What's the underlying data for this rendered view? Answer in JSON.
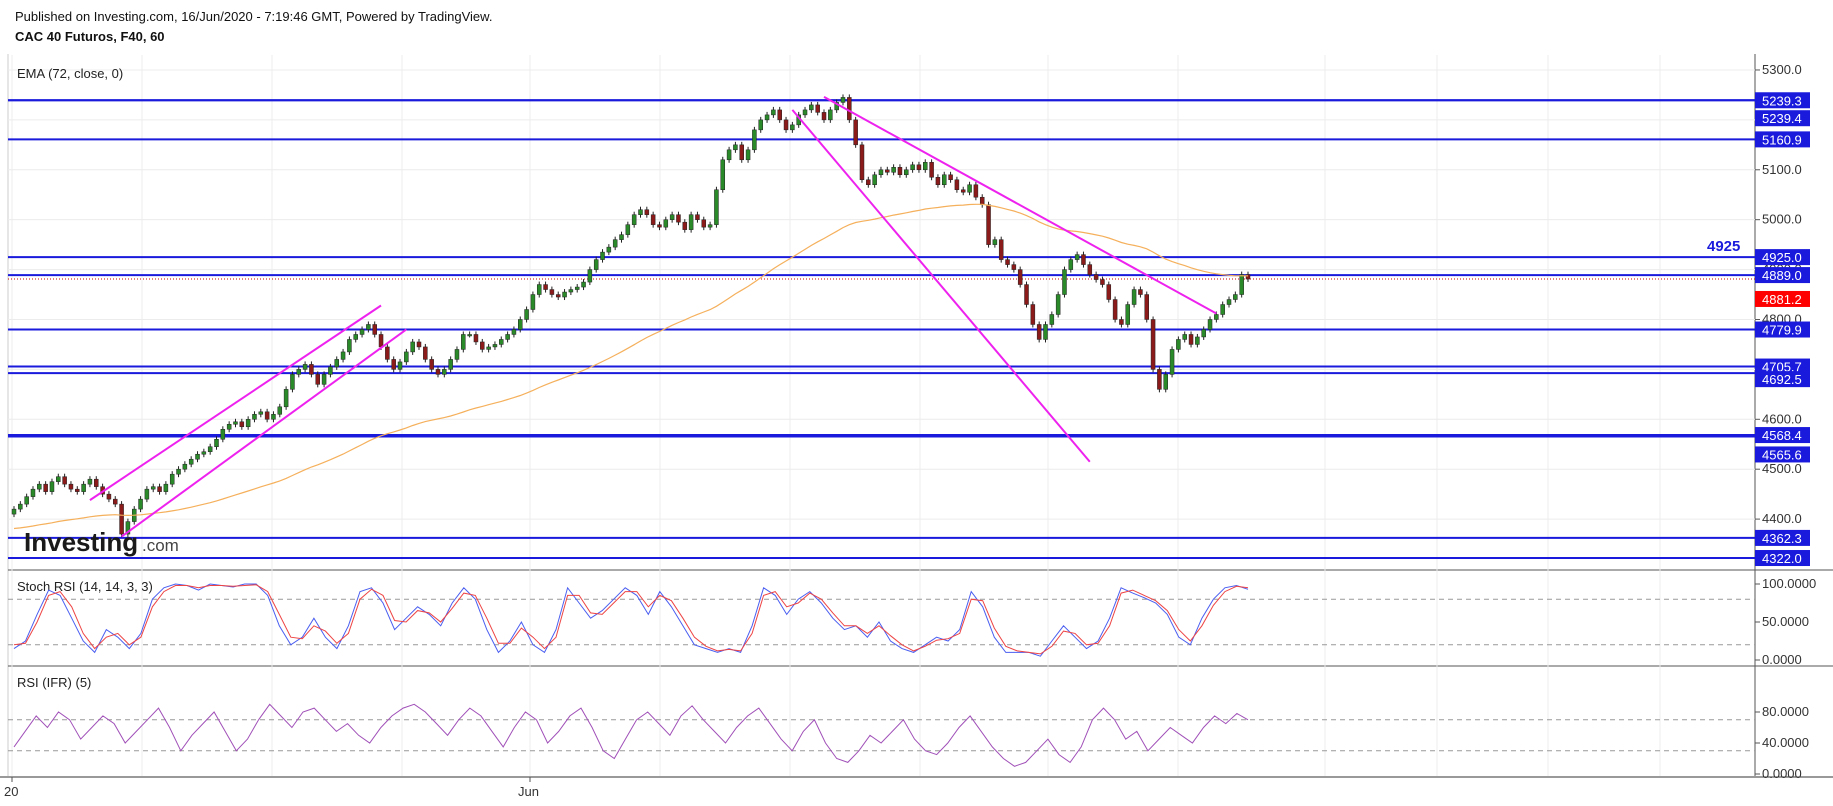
{
  "header": {
    "published": "Published on Investing.com, 16/Jun/2020 - 7:19:46 GMT, Powered by TradingView.",
    "symbol": "CAC 40 Futuros, F40, 60"
  },
  "watermark": {
    "brand": "Investing",
    "suffix": ".com"
  },
  "colors": {
    "level_line": "#1a1adc",
    "trendline": "#ee22ee",
    "ema": "#f5b05c",
    "candle_up": "#2a8a2a",
    "candle_down": "#8b1a1a",
    "price_tag": "#ff0000",
    "stoch_k": "#4a5ef0",
    "stoch_d": "#ee4444",
    "rsi": "#a050b8",
    "grid": "#ececec"
  },
  "chart_data": {
    "type": "candlestick",
    "instrument": "CAC 40 Futuros, F40, 60",
    "indicator_label": "EMA (72, close, 0)",
    "y_range": [
      4300,
      5330
    ],
    "y_ticks": [
      "5300.0",
      "5200.0",
      "5100.0",
      "5000.0",
      "4900.0",
      "4800.0",
      "4700.0",
      "4600.0",
      "4500.0",
      "4400.0"
    ],
    "x_labels": [
      "20",
      "Jun"
    ],
    "horizontal_levels": [
      {
        "value": 5239.3,
        "label": "5239.3"
      },
      {
        "value": 5239.4,
        "label": "5239.4"
      },
      {
        "value": 5160.9,
        "label": "5160.9"
      },
      {
        "value": 4925.0,
        "label": "4925.0"
      },
      {
        "value": 4889.0,
        "label": "4889.0"
      },
      {
        "value": 4779.9,
        "label": "4779.9"
      },
      {
        "value": 4705.7,
        "label": "4705.7"
      },
      {
        "value": 4692.5,
        "label": "4692.5"
      },
      {
        "value": 4568.4,
        "label": "4568.4"
      },
      {
        "value": 4565.6,
        "label": "4565.6"
      },
      {
        "value": 4362.3,
        "label": "4362.3"
      },
      {
        "value": 4322.0,
        "label": "4322.0"
      }
    ],
    "annotation": "4925",
    "last_price": {
      "value": 4881.2,
      "label": "4881.2"
    },
    "closes": [
      4420,
      4430,
      4445,
      4460,
      4470,
      4455,
      4475,
      4485,
      4470,
      4460,
      4455,
      4470,
      4480,
      4465,
      4450,
      4440,
      4430,
      4370,
      4395,
      4420,
      4440,
      4460,
      4465,
      4455,
      4470,
      4490,
      4500,
      4510,
      4520,
      4530,
      4535,
      4545,
      4560,
      4580,
      4590,
      4595,
      4585,
      4600,
      4610,
      4615,
      4600,
      4610,
      4625,
      4660,
      4690,
      4700,
      4710,
      4690,
      4670,
      4690,
      4705,
      4720,
      4735,
      4760,
      4770,
      4780,
      4790,
      4770,
      4745,
      4720,
      4700,
      4715,
      4735,
      4755,
      4745,
      4720,
      4700,
      4690,
      4700,
      4720,
      4740,
      4770,
      4770,
      4755,
      4740,
      4745,
      4750,
      4760,
      4770,
      4780,
      4800,
      4820,
      4850,
      4870,
      4860,
      4850,
      4845,
      4855,
      4860,
      4865,
      4875,
      4900,
      4920,
      4935,
      4945,
      4960,
      4970,
      4990,
      5010,
      5020,
      5010,
      4990,
      4985,
      5000,
      5010,
      4995,
      4980,
      5010,
      5000,
      4985,
      4990,
      5060,
      5120,
      5140,
      5150,
      5120,
      5140,
      5180,
      5200,
      5210,
      5220,
      5200,
      5180,
      5190,
      5210,
      5220,
      5230,
      5215,
      5200,
      5220,
      5235,
      5245,
      5200,
      5150,
      5080,
      5070,
      5090,
      5100,
      5095,
      5105,
      5090,
      5100,
      5110,
      5100,
      5115,
      5085,
      5070,
      5090,
      5080,
      5060,
      5055,
      5070,
      5045,
      5030,
      4950,
      4960,
      4920,
      4910,
      4900,
      4870,
      4830,
      4790,
      4760,
      4790,
      4810,
      4850,
      4900,
      4920,
      4930,
      4910,
      4890,
      4880,
      4870,
      4840,
      4800,
      4790,
      4830,
      4860,
      4850,
      4800,
      4700,
      4660,
      4690,
      4740,
      4760,
      4770,
      4750,
      4765,
      4780,
      4800,
      4810,
      4830,
      4840,
      4850,
      4890,
      4881
    ]
  },
  "stoch_rsi": {
    "label": "Stoch RSI (14, 14, 3, 3)",
    "y_ticks": [
      "100.0000",
      "50.0000",
      "0.0000"
    ],
    "k": [
      15,
      25,
      60,
      92,
      85,
      55,
      25,
      10,
      40,
      30,
      15,
      35,
      80,
      95,
      100,
      98,
      92,
      100,
      98,
      96,
      100,
      100,
      85,
      45,
      20,
      30,
      55,
      30,
      15,
      45,
      90,
      95,
      75,
      40,
      55,
      70,
      60,
      45,
      75,
      95,
      80,
      40,
      10,
      25,
      50,
      20,
      10,
      40,
      95,
      75,
      55,
      65,
      80,
      95,
      85,
      60,
      90,
      70,
      45,
      20,
      15,
      10,
      15,
      10,
      45,
      95,
      85,
      60,
      80,
      90,
      75,
      55,
      40,
      45,
      30,
      50,
      25,
      15,
      10,
      20,
      30,
      25,
      40,
      90,
      70,
      30,
      10,
      10,
      10,
      5,
      25,
      45,
      30,
      15,
      25,
      55,
      95,
      88,
      82,
      75,
      60,
      30,
      20,
      55,
      80,
      95,
      98,
      93
    ],
    "d": [
      20,
      22,
      50,
      85,
      90,
      70,
      35,
      15,
      30,
      35,
      20,
      30,
      70,
      90,
      98,
      98,
      95,
      98,
      98,
      97,
      98,
      99,
      90,
      60,
      30,
      28,
      45,
      38,
      22,
      35,
      80,
      93,
      85,
      52,
      50,
      65,
      62,
      50,
      68,
      88,
      85,
      55,
      22,
      22,
      42,
      30,
      15,
      30,
      85,
      85,
      62,
      60,
      75,
      90,
      90,
      70,
      85,
      78,
      55,
      30,
      18,
      12,
      14,
      12,
      35,
      85,
      90,
      70,
      75,
      88,
      80,
      62,
      45,
      45,
      35,
      45,
      32,
      20,
      12,
      18,
      26,
      28,
      35,
      80,
      78,
      42,
      18,
      12,
      10,
      8,
      18,
      38,
      35,
      20,
      22,
      45,
      88,
      92,
      85,
      78,
      65,
      40,
      25,
      45,
      72,
      90,
      97,
      95
    ]
  },
  "rsi": {
    "label": "RSI (IFR) (5)",
    "y_ticks": [
      "80.0000",
      "40.0000",
      "0.0000"
    ],
    "values": [
      35,
      55,
      75,
      60,
      80,
      70,
      45,
      60,
      75,
      65,
      40,
      55,
      70,
      85,
      60,
      30,
      50,
      65,
      80,
      55,
      30,
      45,
      70,
      90,
      75,
      60,
      80,
      85,
      70,
      55,
      65,
      50,
      40,
      60,
      75,
      85,
      90,
      80,
      65,
      50,
      70,
      85,
      75,
      55,
      35,
      60,
      80,
      70,
      40,
      55,
      75,
      85,
      60,
      30,
      20,
      45,
      70,
      80,
      65,
      50,
      75,
      88,
      70,
      55,
      40,
      60,
      75,
      85,
      65,
      45,
      30,
      55,
      70,
      40,
      20,
      15,
      30,
      50,
      40,
      55,
      70,
      45,
      30,
      25,
      40,
      60,
      75,
      55,
      35,
      20,
      10,
      15,
      30,
      45,
      25,
      15,
      35,
      70,
      85,
      70,
      45,
      55,
      30,
      45,
      60,
      50,
      40,
      60,
      75,
      65,
      78,
      70
    ]
  }
}
